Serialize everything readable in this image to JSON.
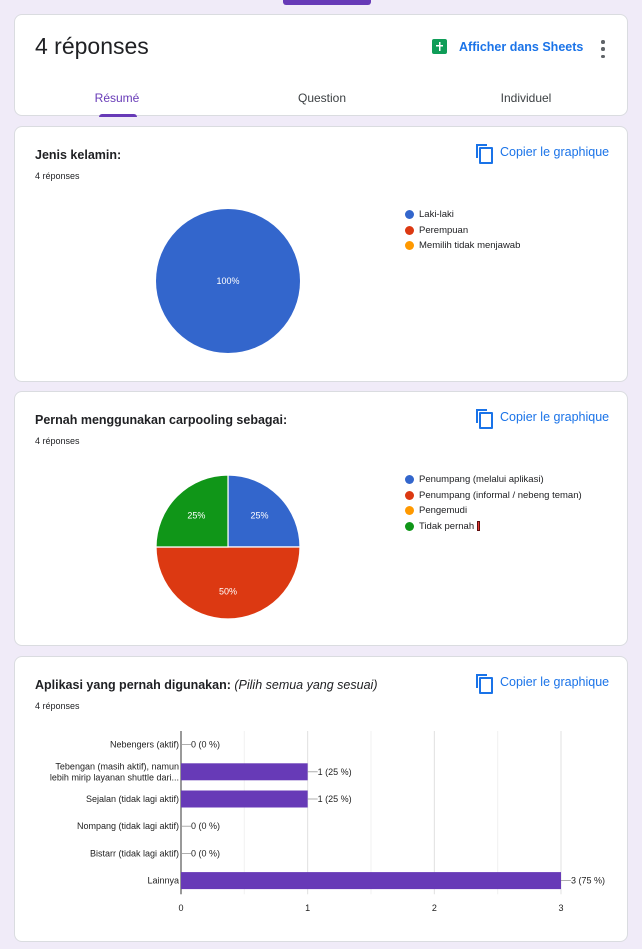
{
  "header": {
    "title": "4 réponses",
    "sheets_label": "Afficher dans Sheets",
    "tabs": [
      {
        "label": "Résumé",
        "active": true
      },
      {
        "label": "Question",
        "active": false
      },
      {
        "label": "Individuel",
        "active": false
      }
    ]
  },
  "copy_label": "Copier le graphique",
  "questions": [
    {
      "title": "Jenis kelamin:",
      "hint": "",
      "count": "4 réponses",
      "legend": [
        {
          "label": "Laki-laki",
          "color": "#3366cc"
        },
        {
          "label": "Perempuan",
          "color": "#dc3912"
        },
        {
          "label": "Memilih tidak menjawab",
          "color": "#ff9900"
        }
      ]
    },
    {
      "title": "Pernah menggunakan carpooling sebagai:",
      "hint": "",
      "count": "4 réponses",
      "legend": [
        {
          "label": "Penumpang (melalui aplikasi)",
          "color": "#3366cc"
        },
        {
          "label": "Penumpang (informal / nebeng teman)",
          "color": "#dc3912"
        },
        {
          "label": "Pengemudi",
          "color": "#ff9900"
        },
        {
          "label": "Tidak pernah",
          "color": "#109618"
        }
      ]
    },
    {
      "title": "Aplikasi yang pernah digunakan:",
      "hint": "(Pilih semua yang sesuai)",
      "count": "4 réponses"
    }
  ],
  "chart_data": [
    {
      "type": "pie",
      "categories": [
        "Laki-laki",
        "Perempuan",
        "Memilih tidak menjawab"
      ],
      "values": [
        4,
        0,
        0
      ],
      "slice_labels": [
        "100%",
        "",
        ""
      ],
      "colors": [
        "#3366cc",
        "#dc3912",
        "#ff9900"
      ],
      "legend": "right"
    },
    {
      "type": "pie",
      "categories": [
        "Penumpang (melalui aplikasi)",
        "Penumpang (informal / nebeng teman)",
        "Pengemudi",
        "Tidak pernah"
      ],
      "values": [
        1,
        2,
        0,
        1
      ],
      "slice_labels": [
        "25%",
        "50%",
        "",
        "25%"
      ],
      "colors": [
        "#3366cc",
        "#dc3912",
        "#ff9900",
        "#109618"
      ],
      "legend": "right"
    },
    {
      "type": "bar",
      "orientation": "horizontal",
      "categories": [
        [
          "Nebengers (aktif)"
        ],
        [
          "Tebengan (masih aktif), namun",
          "lebih mirip layanan shuttle dari..."
        ],
        [
          "Sejalan (tidak lagi aktif)"
        ],
        [
          "Nompang (tidak lagi aktif)"
        ],
        [
          "Bistarr (tidak lagi aktif)"
        ],
        [
          "Lainnya"
        ]
      ],
      "values": [
        0,
        1,
        1,
        0,
        0,
        3
      ],
      "value_labels": [
        "0 (0 %)",
        "1 (25 %)",
        "1 (25 %)",
        "0 (0 %)",
        "0 (0 %)",
        "3 (75 %)"
      ],
      "xlim": [
        0,
        3
      ],
      "xticks": [
        "0",
        "1",
        "2",
        "3"
      ],
      "bar_color": "#673ab7",
      "grid": true
    }
  ]
}
